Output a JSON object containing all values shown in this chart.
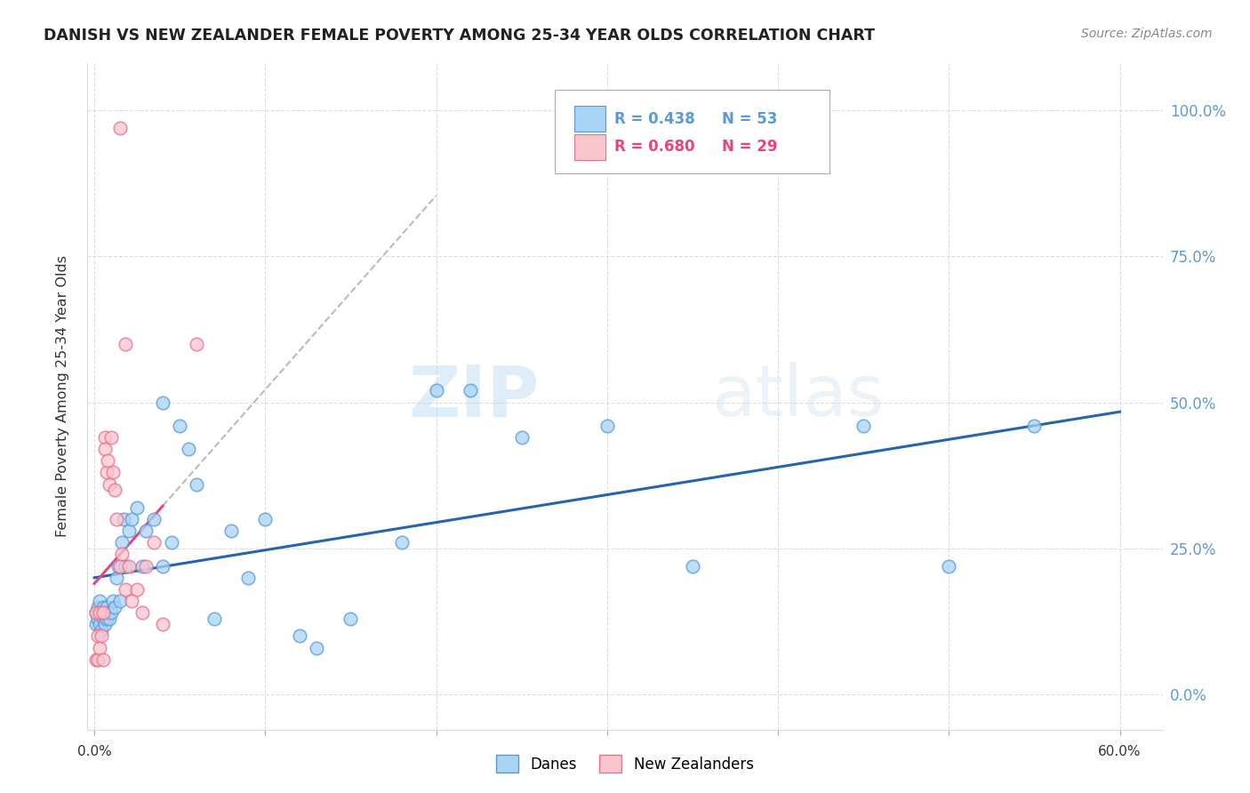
{
  "title": "DANISH VS NEW ZEALANDER FEMALE POVERTY AMONG 25-34 YEAR OLDS CORRELATION CHART",
  "source": "Source: ZipAtlas.com",
  "ylabel": "Female Poverty Among 25-34 Year Olds",
  "ytick_vals": [
    0.0,
    0.25,
    0.5,
    0.75,
    1.0
  ],
  "ytick_labels": [
    "0.0%",
    "25.0%",
    "50.0%",
    "75.0%",
    "100.0%"
  ],
  "legend_blue_r": "R = 0.438",
  "legend_blue_n": "N = 53",
  "legend_pink_r": "R = 0.680",
  "legend_pink_n": "N = 29",
  "scatter_blue_face": "#A8D4F5",
  "scatter_blue_edge": "#5B9BD5",
  "scatter_pink_face": "#F9C6CE",
  "scatter_pink_edge": "#E87090",
  "line_blue_color": "#2565AE",
  "line_pink_color": "#E8457A",
  "line_dash_color": "#BBBBBB",
  "right_tick_color": "#5B9BD5",
  "watermark_color": "#C8E4F8",
  "grid_color": "#DDDDDD",
  "title_color": "#222222",
  "source_color": "#888888",
  "ylabel_color": "#333333",
  "danes_x": [
    0.001,
    0.001,
    0.002,
    0.002,
    0.003,
    0.003,
    0.004,
    0.004,
    0.005,
    0.005,
    0.006,
    0.006,
    0.007,
    0.007,
    0.008,
    0.009,
    0.01,
    0.011,
    0.012,
    0.013,
    0.014,
    0.015,
    0.016,
    0.017,
    0.018,
    0.02,
    0.022,
    0.025,
    0.028,
    0.03,
    0.035,
    0.04,
    0.04,
    0.045,
    0.05,
    0.055,
    0.06,
    0.07,
    0.08,
    0.09,
    0.1,
    0.12,
    0.13,
    0.15,
    0.18,
    0.2,
    0.22,
    0.25,
    0.3,
    0.35,
    0.45,
    0.5,
    0.55
  ],
  "danes_y": [
    0.14,
    0.12,
    0.15,
    0.13,
    0.16,
    0.12,
    0.14,
    0.11,
    0.15,
    0.13,
    0.12,
    0.14,
    0.15,
    0.13,
    0.14,
    0.13,
    0.14,
    0.16,
    0.15,
    0.2,
    0.22,
    0.16,
    0.26,
    0.3,
    0.22,
    0.28,
    0.3,
    0.32,
    0.22,
    0.28,
    0.3,
    0.5,
    0.22,
    0.26,
    0.46,
    0.42,
    0.36,
    0.13,
    0.28,
    0.2,
    0.3,
    0.1,
    0.08,
    0.13,
    0.26,
    0.52,
    0.52,
    0.44,
    0.46,
    0.22,
    0.46,
    0.22,
    0.46
  ],
  "nz_x": [
    0.001,
    0.001,
    0.002,
    0.002,
    0.003,
    0.003,
    0.004,
    0.005,
    0.005,
    0.006,
    0.006,
    0.007,
    0.008,
    0.009,
    0.01,
    0.011,
    0.012,
    0.013,
    0.015,
    0.016,
    0.018,
    0.02,
    0.022,
    0.025,
    0.028,
    0.03,
    0.035,
    0.04,
    0.06
  ],
  "nz_y": [
    0.14,
    0.06,
    0.1,
    0.06,
    0.14,
    0.08,
    0.1,
    0.14,
    0.06,
    0.44,
    0.42,
    0.38,
    0.4,
    0.36,
    0.44,
    0.38,
    0.35,
    0.3,
    0.22,
    0.24,
    0.18,
    0.22,
    0.16,
    0.18,
    0.14,
    0.22,
    0.26,
    0.12,
    0.6
  ]
}
